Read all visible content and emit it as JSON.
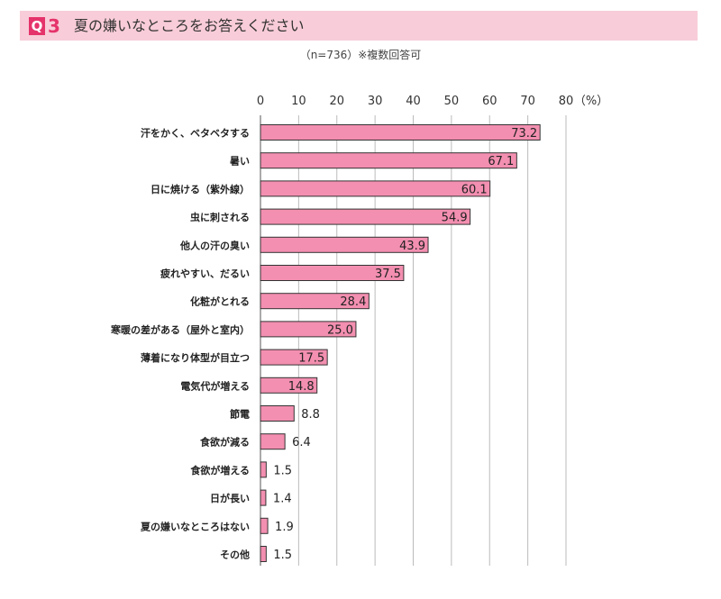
{
  "header": {
    "q_letter": "Q",
    "q_number": "3",
    "question": "夏の嫌いなところをお答えください"
  },
  "sample_note": "（n=736）※複数回答可",
  "chart_data": {
    "type": "bar",
    "orientation": "horizontal",
    "title": "夏の嫌いなところをお答えください",
    "unit_label": "（%）",
    "xlim": [
      0,
      80
    ],
    "ticks": [
      "0",
      "10",
      "20",
      "30",
      "40",
      "50",
      "60",
      "70",
      "80"
    ],
    "tick_values": [
      0,
      10,
      20,
      30,
      40,
      50,
      60,
      70,
      80
    ],
    "grid": true,
    "categories": [
      "汗をかく、ベタベタする",
      "暑い",
      "日に焼ける（紫外線）",
      "虫に刺される",
      "他人の汗の臭い",
      "疲れやすい、だるい",
      "化粧がとれる",
      "寒暖の差がある（屋外と室内）",
      "薄着になり体型が目立つ",
      "電気代が増える",
      "節電",
      "食欲が減る",
      "食欲が増える",
      "日が長い",
      "夏の嫌いなところはない",
      "その他"
    ],
    "values": [
      73.2,
      67.1,
      60.1,
      54.9,
      43.9,
      37.5,
      28.4,
      25.0,
      17.5,
      14.8,
      8.8,
      6.4,
      1.5,
      1.4,
      1.9,
      1.5
    ],
    "value_labels": [
      "73.2",
      "67.1",
      "60.1",
      "54.9",
      "43.9",
      "37.5",
      "28.4",
      "25.0",
      "17.5",
      "14.8",
      "8.8",
      "6.4",
      "1.5",
      "1.4",
      "1.9",
      "1.5"
    ],
    "colors": {
      "bar": "#f38fb0",
      "bar_edge": "#333333",
      "grid": "#bbbbbb",
      "accent": "#e5336b"
    }
  }
}
